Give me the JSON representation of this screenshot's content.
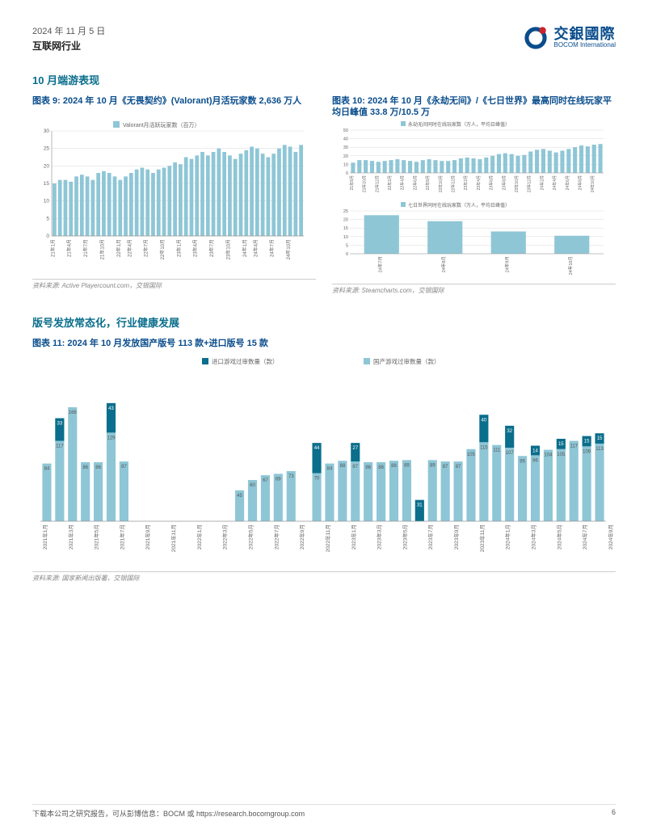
{
  "header": {
    "date": "2024 年 11 月 5 日",
    "sector": "互联网行业",
    "logo_cn": "交銀國際",
    "logo_en": "BOCOM International"
  },
  "section1_heading": "10 月端游表现",
  "chart9": {
    "title": "图表 9: 2024 年 10 月《无畏契约》(Valorant)月活玩家数 2,636 万人",
    "legend": "Valorant月活跃玩家数（百万）",
    "type": "bar",
    "color": "#8ec6d6",
    "grid_color": "#d9d9d9",
    "ylim": [
      0,
      30
    ],
    "ytick_step": 5,
    "yticks": [
      0,
      5,
      10,
      15,
      20,
      25,
      30
    ],
    "categories": [
      "21年1月",
      "21年4月",
      "21年7月",
      "21年10月",
      "22年1月",
      "22年4月",
      "22年7月",
      "22年10月",
      "23年1月",
      "23年4月",
      "23年7月",
      "23年10月",
      "24年1月",
      "24年4月",
      "24年7月",
      "24年10月"
    ],
    "tick_every": 3,
    "values": [
      15,
      16,
      16,
      15.5,
      17,
      17.5,
      17,
      16,
      18,
      18.5,
      18,
      17,
      16,
      17,
      18,
      19,
      19.5,
      19,
      18,
      19,
      19.5,
      20,
      21,
      20.5,
      22.5,
      22,
      23,
      24,
      23,
      24,
      25,
      24,
      23,
      22,
      23.5,
      24.5,
      25.5,
      25,
      23.5,
      22.5,
      23.5,
      25,
      26,
      25.5,
      24,
      26
    ],
    "source": "资料来源: Active Playercount.com，交银国际"
  },
  "chart10": {
    "title": "图表 10: 2024 年 10 月《永劫无间》/《七日世界》最高同时在线玩家平均日峰值 33.8 万/10.5 万",
    "sub_a": {
      "legend": "永劫无间同时在线玩家数（万人，平均日峰值）",
      "type": "bar",
      "color": "#8ec6d6",
      "grid_color": "#d9d9d9",
      "ylim": [
        0,
        50
      ],
      "ytick_step": 10,
      "yticks": [
        0,
        10,
        20,
        30,
        40,
        50
      ],
      "categories": [
        "21年8月",
        "21年10月",
        "21年12月",
        "22年2月",
        "22年4月",
        "22年6月",
        "22年8月",
        "22年10月",
        "22年12月",
        "23年2月",
        "23年4月",
        "23年6月",
        "23年8月",
        "23年10月",
        "23年12月",
        "24年2月",
        "24年4月",
        "24年6月",
        "24年8月",
        "24年10月"
      ],
      "values": [
        12,
        15,
        15,
        14,
        13,
        14,
        15,
        16,
        15,
        14,
        13,
        15,
        16,
        15,
        14,
        14,
        15,
        17,
        18,
        17,
        16,
        18,
        20,
        22,
        23,
        22,
        20,
        21,
        25,
        27,
        28,
        26,
        24,
        26,
        28,
        30,
        32,
        31,
        33,
        33.8
      ]
    },
    "sub_b": {
      "legend": "七日世界同时在线玩家数（万人，平均日峰值）",
      "type": "bar",
      "color": "#8ec6d6",
      "grid_color": "#d9d9d9",
      "ylim": [
        0,
        25
      ],
      "ytick_step": 5,
      "yticks": [
        0,
        5,
        10,
        15,
        20,
        25
      ],
      "categories": [
        "24年7月",
        "24年8月",
        "24年9月",
        "24年10月"
      ],
      "values": [
        22.5,
        19,
        13,
        10.5
      ]
    },
    "source": "资料来源: Steamcharts.com，交银国际"
  },
  "section2_heading": "版号发放常态化，行业健康发展",
  "chart11": {
    "title": "图表 11: 2024 年 10 月发放国产版号 113 款+进口版号 15 款",
    "legend_import": "进口游戏过审数量（款）",
    "legend_domestic": "国产游戏过审数量（款）",
    "import_color": "#0a6e8c",
    "domestic_color": "#8ec6d6",
    "grid_color": "#e5e5e5",
    "ylim": [
      0,
      220
    ],
    "categories": [
      "2021年1月",
      "",
      "2021年3月",
      "",
      "2021年5月",
      "",
      "2021年7月",
      "",
      "2021年9月",
      "",
      "2021年11月",
      "",
      "2022年1月",
      "",
      "2022年3月",
      "",
      "2022年5月",
      "",
      "2022年7月",
      "",
      "2022年9月",
      "",
      "2022年11月",
      "",
      "2023年1月",
      "",
      "2023年3月",
      "",
      "2023年5月",
      "",
      "2023年7月",
      "",
      "2023年9月",
      "",
      "2023年11月",
      "",
      "2024年1月",
      "",
      "2024年3月",
      "",
      "2024年5月",
      "",
      "2024年7月",
      "",
      "2024年9月",
      ""
    ],
    "domestic": [
      84,
      117,
      166,
      86,
      86,
      129,
      87,
      0,
      0,
      0,
      0,
      0,
      0,
      0,
      0,
      45,
      60,
      67,
      69,
      73,
      0,
      70,
      84,
      88,
      87,
      86,
      86,
      88,
      89,
      0,
      89,
      87,
      87,
      105,
      115,
      111,
      107,
      95,
      96,
      104,
      105,
      117,
      109,
      113
    ],
    "import_": [
      0,
      33,
      0,
      0,
      0,
      43,
      0,
      0,
      0,
      0,
      0,
      0,
      0,
      0,
      0,
      0,
      0,
      0,
      0,
      0,
      0,
      44,
      0,
      0,
      27,
      0,
      0,
      0,
      0,
      31,
      0,
      0,
      0,
      0,
      40,
      0,
      32,
      0,
      14,
      0,
      15,
      0,
      15,
      15
    ],
    "source": "资料来源: 国家新闻出版署，交银国际"
  },
  "footer": {
    "text": "下载本公司之研究报告，可从彭博信息：BOCM 或 https://research.bocomgroup.com",
    "page": "6"
  },
  "colors": {
    "brand_blue": "#0a4d8c",
    "teal": "#0a6e8c",
    "bar_fill": "#8ec6d6"
  }
}
